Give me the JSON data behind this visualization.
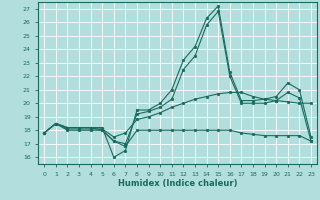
{
  "xlabel": "Humidex (Indice chaleur)",
  "xlim": [
    -0.5,
    23.5
  ],
  "ylim": [
    15.5,
    27.5
  ],
  "yticks": [
    16,
    17,
    18,
    19,
    20,
    21,
    22,
    23,
    24,
    25,
    26,
    27
  ],
  "xticks": [
    0,
    1,
    2,
    3,
    4,
    5,
    6,
    7,
    8,
    9,
    10,
    11,
    12,
    13,
    14,
    15,
    16,
    17,
    18,
    19,
    20,
    21,
    22,
    23
  ],
  "bg_color": "#b2dedd",
  "line_color": "#1a6b5e",
  "grid_color": "#ffffff",
  "line1": [
    17.8,
    18.5,
    18.2,
    18.2,
    18.2,
    18.2,
    16.0,
    16.5,
    19.5,
    19.5,
    20.0,
    21.0,
    23.2,
    24.2,
    26.3,
    27.2,
    22.3,
    20.2,
    20.2,
    20.3,
    20.5,
    21.5,
    21.0,
    17.5
  ],
  "line2": [
    17.8,
    18.5,
    18.2,
    18.2,
    18.2,
    18.0,
    17.2,
    17.0,
    19.2,
    19.4,
    19.7,
    20.3,
    22.5,
    23.5,
    25.8,
    26.8,
    22.0,
    20.0,
    20.0,
    20.0,
    20.2,
    20.8,
    20.4,
    17.2
  ],
  "line3": [
    17.8,
    18.5,
    18.1,
    18.1,
    18.1,
    18.1,
    17.5,
    17.8,
    18.8,
    19.0,
    19.3,
    19.7,
    20.0,
    20.3,
    20.5,
    20.7,
    20.8,
    20.8,
    20.5,
    20.3,
    20.2,
    20.1,
    20.0,
    20.0
  ],
  "line4": [
    17.8,
    18.5,
    18.0,
    18.0,
    18.0,
    18.0,
    17.2,
    16.8,
    18.0,
    18.0,
    18.0,
    18.0,
    18.0,
    18.0,
    18.0,
    18.0,
    18.0,
    17.8,
    17.7,
    17.6,
    17.6,
    17.6,
    17.6,
    17.2
  ]
}
